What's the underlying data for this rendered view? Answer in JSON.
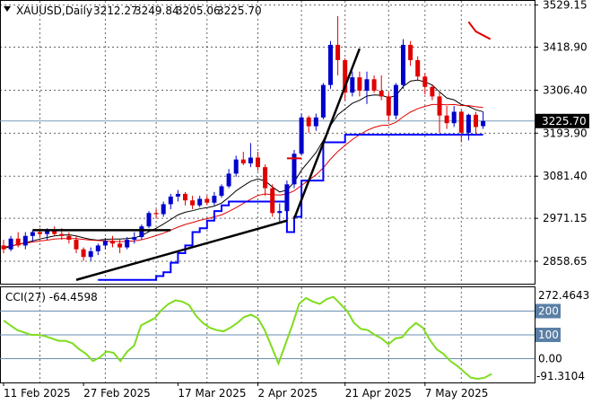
{
  "chart_data": [
    {
      "type": "candlestick",
      "symbol": "XAUUSD",
      "timeframe": "Daily",
      "ohlc_values": [
        "3212.27",
        "3249.84",
        "3205.06",
        "3225.70"
      ],
      "current_price_label": "3225.70",
      "ylim": [
        2800,
        3540
      ],
      "y_tick_labels": [
        "3529.15",
        "3418.90",
        "3306.40",
        "3193.90",
        "3081.40",
        "2971.15",
        "2858.65"
      ],
      "x_tick_labels": [
        "11 Feb 2025",
        "27 Feb 2025",
        "17 Mar 2025",
        "2 Apr 2025",
        "21 Apr 2025",
        "7 May 2025"
      ],
      "candles": [
        {
          "o": 2900,
          "h": 2915,
          "l": 2880,
          "c": 2890
        },
        {
          "o": 2890,
          "h": 2925,
          "l": 2885,
          "c": 2918
        },
        {
          "o": 2918,
          "h": 2935,
          "l": 2895,
          "c": 2900
        },
        {
          "o": 2900,
          "h": 2935,
          "l": 2890,
          "c": 2925
        },
        {
          "o": 2925,
          "h": 2940,
          "l": 2910,
          "c": 2935
        },
        {
          "o": 2935,
          "h": 2945,
          "l": 2920,
          "c": 2930
        },
        {
          "o": 2930,
          "h": 2945,
          "l": 2915,
          "c": 2940
        },
        {
          "o": 2940,
          "h": 2950,
          "l": 2925,
          "c": 2930
        },
        {
          "o": 2930,
          "h": 2945,
          "l": 2915,
          "c": 2925
        },
        {
          "o": 2925,
          "h": 2935,
          "l": 2905,
          "c": 2915
        },
        {
          "o": 2915,
          "h": 2925,
          "l": 2880,
          "c": 2890
        },
        {
          "o": 2890,
          "h": 2895,
          "l": 2860,
          "c": 2870
        },
        {
          "o": 2870,
          "h": 2895,
          "l": 2860,
          "c": 2885
        },
        {
          "o": 2885,
          "h": 2905,
          "l": 2875,
          "c": 2900
        },
        {
          "o": 2900,
          "h": 2920,
          "l": 2890,
          "c": 2912
        },
        {
          "o": 2912,
          "h": 2925,
          "l": 2895,
          "c": 2905
        },
        {
          "o": 2905,
          "h": 2915,
          "l": 2880,
          "c": 2895
        },
        {
          "o": 2895,
          "h": 2922,
          "l": 2890,
          "c": 2915
        },
        {
          "o": 2915,
          "h": 2935,
          "l": 2905,
          "c": 2922
        },
        {
          "o": 2922,
          "h": 2955,
          "l": 2915,
          "c": 2950
        },
        {
          "o": 2950,
          "h": 2990,
          "l": 2945,
          "c": 2985
        },
        {
          "o": 2985,
          "h": 2995,
          "l": 2970,
          "c": 2982
        },
        {
          "o": 2982,
          "h": 3015,
          "l": 2975,
          "c": 3008
        },
        {
          "o": 3008,
          "h": 3035,
          "l": 2995,
          "c": 3028
        },
        {
          "o": 3028,
          "h": 3045,
          "l": 3015,
          "c": 3035
        },
        {
          "o": 3035,
          "h": 3040,
          "l": 3005,
          "c": 3018
        },
        {
          "o": 3018,
          "h": 3030,
          "l": 2995,
          "c": 3005
        },
        {
          "o": 3005,
          "h": 3030,
          "l": 3000,
          "c": 3022
        },
        {
          "o": 3022,
          "h": 3030,
          "l": 3005,
          "c": 3012
        },
        {
          "o": 3012,
          "h": 3040,
          "l": 3005,
          "c": 3030
        },
        {
          "o": 3030,
          "h": 3060,
          "l": 3025,
          "c": 3055
        },
        {
          "o": 3055,
          "h": 3100,
          "l": 3050,
          "c": 3088
        },
        {
          "o": 3088,
          "h": 3135,
          "l": 3080,
          "c": 3125
        },
        {
          "o": 3125,
          "h": 3145,
          "l": 3110,
          "c": 3115
        },
        {
          "o": 3115,
          "h": 3168,
          "l": 3105,
          "c": 3130
        },
        {
          "o": 3130,
          "h": 3145,
          "l": 3095,
          "c": 3105
        },
        {
          "o": 3105,
          "h": 3112,
          "l": 3030,
          "c": 3050
        },
        {
          "o": 3050,
          "h": 3060,
          "l": 2975,
          "c": 2985
        },
        {
          "o": 2985,
          "h": 3010,
          "l": 2960,
          "c": 2990
        },
        {
          "o": 2990,
          "h": 3070,
          "l": 2970,
          "c": 3060
        },
        {
          "o": 3060,
          "h": 3150,
          "l": 3050,
          "c": 3140
        },
        {
          "o": 3140,
          "h": 3245,
          "l": 3135,
          "c": 3235
        },
        {
          "o": 3235,
          "h": 3240,
          "l": 3195,
          "c": 3212
        },
        {
          "o": 3212,
          "h": 3245,
          "l": 3200,
          "c": 3235
        },
        {
          "o": 3235,
          "h": 3325,
          "l": 3230,
          "c": 3320
        },
        {
          "o": 3320,
          "h": 3435,
          "l": 3310,
          "c": 3425
        },
        {
          "o": 3425,
          "h": 3500,
          "l": 3345,
          "c": 3385
        },
        {
          "o": 3385,
          "h": 3390,
          "l": 3280,
          "c": 3300
        },
        {
          "o": 3300,
          "h": 3355,
          "l": 3290,
          "c": 3340
        },
        {
          "o": 3340,
          "h": 3355,
          "l": 3290,
          "c": 3305
        },
        {
          "o": 3305,
          "h": 3355,
          "l": 3270,
          "c": 3335
        },
        {
          "o": 3335,
          "h": 3345,
          "l": 3300,
          "c": 3305
        },
        {
          "o": 3305,
          "h": 3345,
          "l": 3280,
          "c": 3290
        },
        {
          "o": 3290,
          "h": 3300,
          "l": 3225,
          "c": 3240
        },
        {
          "o": 3240,
          "h": 3325,
          "l": 3230,
          "c": 3320
        },
        {
          "o": 3320,
          "h": 3440,
          "l": 3310,
          "c": 3425
        },
        {
          "o": 3425,
          "h": 3435,
          "l": 3370,
          "c": 3385
        },
        {
          "o": 3385,
          "h": 3395,
          "l": 3330,
          "c": 3342
        },
        {
          "o": 3342,
          "h": 3350,
          "l": 3295,
          "c": 3315
        },
        {
          "o": 3315,
          "h": 3320,
          "l": 3280,
          "c": 3290
        },
        {
          "o": 3290,
          "h": 3300,
          "l": 3195,
          "c": 3240
        },
        {
          "o": 3240,
          "h": 3265,
          "l": 3205,
          "c": 3220
        },
        {
          "o": 3220,
          "h": 3265,
          "l": 3210,
          "c": 3250
        },
        {
          "o": 3250,
          "h": 3255,
          "l": 3170,
          "c": 3195
        },
        {
          "o": 3195,
          "h": 3245,
          "l": 3175,
          "c": 3242
        },
        {
          "o": 3242,
          "h": 3250,
          "l": 3190,
          "c": 3210
        },
        {
          "o": 3212.27,
          "h": 3249.84,
          "l": 3205.06,
          "c": 3225.7
        }
      ],
      "series": [
        {
          "type": "line",
          "values": [
            2892,
            2898,
            2903,
            2907,
            2912,
            2917,
            2921,
            2925,
            2927,
            2928,
            2925,
            2920,
            2916,
            2914,
            2916,
            2917,
            2917,
            2918,
            2920,
            2926,
            2936,
            2945,
            2956,
            2968,
            2980,
            2987,
            2991,
            2996,
            2999,
            3003,
            3011,
            3026,
            3043,
            3056,
            3068,
            3074,
            3069,
            3053,
            3040,
            3045,
            3066,
            3097,
            3120,
            3143,
            3175,
            3214,
            3242,
            3257,
            3272,
            3280,
            3291,
            3294,
            3293,
            3287,
            3292,
            3316,
            3330,
            3333,
            3328,
            3320,
            3302,
            3286,
            3281,
            3269,
            3264,
            3255,
            3250
          ]
        },
        {
          "type": "line",
          "values": [
            2896,
            2899,
            2903,
            2906,
            2909,
            2912,
            2914,
            2917,
            2918,
            2918,
            2918,
            2916,
            2914,
            2913,
            2912,
            2911,
            2910,
            2911,
            2912,
            2915,
            2920,
            2926,
            2932,
            2940,
            2948,
            2955,
            2960,
            2966,
            2970,
            2975,
            2980,
            2989,
            2999,
            3010,
            3021,
            3031,
            3035,
            3033,
            3032,
            3035,
            3043,
            3057,
            3071,
            3085,
            3103,
            3126,
            3146,
            3162,
            3177,
            3190,
            3201,
            3209,
            3214,
            3215,
            3222,
            3237,
            3249,
            3258,
            3264,
            3269,
            3269,
            3268,
            3269,
            3266,
            3266,
            3263,
            3261
          ]
        },
        {
          "type": "step",
          "values": [
            null,
            null,
            null,
            null,
            null,
            null,
            null,
            null,
            null,
            null,
            null,
            null,
            null,
            2810,
            2810,
            2810,
            2810,
            2810,
            2810,
            2810,
            2810,
            2820,
            2830,
            2855,
            2880,
            2900,
            2935,
            2945,
            2965,
            2990,
            3005,
            3015,
            3015,
            3015,
            3015,
            3015,
            3015,
            3015,
            3015,
            2935,
            2975,
            3070,
            3070,
            3070,
            3170,
            3170,
            3170,
            3190,
            3190,
            3190,
            3190,
            3190,
            3190,
            3190,
            3190,
            3190,
            3190,
            3190,
            3190,
            3190,
            3190,
            3190,
            3190,
            3190,
            3190,
            3190,
            3190
          ]
        }
      ],
      "red_dash_segments": [
        [
          3128,
          3128
        ],
        [
          3460,
          3440
        ]
      ],
      "trendlines": [
        [
          2940,
          2940
        ],
        [
          2810,
          2965
        ],
        [
          2970,
          3415
        ]
      ]
    },
    {
      "type": "line",
      "indicator": "CCI(27)",
      "current_value": "-64.4598",
      "y_max_label": "272.4643",
      "y_min_label": "-91.3104",
      "y_tick_labels": [
        "200",
        "100",
        "0.00"
      ],
      "ylim": [
        -100,
        300
      ],
      "values": [
        160,
        140,
        120,
        110,
        100,
        100,
        95,
        85,
        75,
        75,
        65,
        40,
        20,
        -10,
        5,
        30,
        25,
        -10,
        30,
        55,
        140,
        155,
        170,
        205,
        230,
        245,
        240,
        225,
        180,
        150,
        130,
        120,
        115,
        130,
        150,
        175,
        185,
        170,
        120,
        50,
        -20,
        60,
        140,
        230,
        255,
        240,
        230,
        250,
        260,
        230,
        200,
        150,
        125,
        120,
        100,
        85,
        60,
        85,
        90,
        125,
        150,
        130,
        80,
        40,
        20,
        -10,
        -30,
        -55,
        -80,
        -85,
        -80,
        -64
      ]
    }
  ]
}
